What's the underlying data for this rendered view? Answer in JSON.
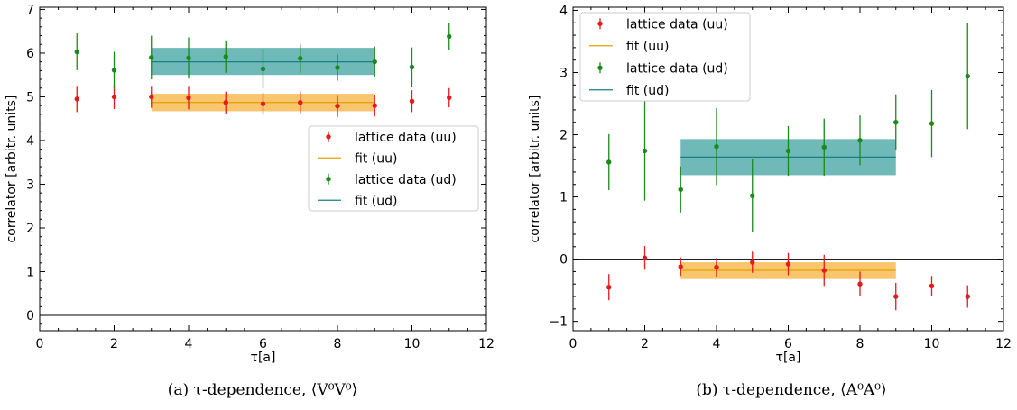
{
  "chart_data": [
    {
      "type": "scatter",
      "caption": "(a) τ-dependence, ⟨V⁰V⁰⟩",
      "xlabel": "τ[a]",
      "ylabel": "correlator [arbitr. units]",
      "xlim": [
        0,
        12
      ],
      "ylim": [
        -0.35,
        7.05
      ],
      "xticks": [
        0,
        2,
        4,
        6,
        8,
        10,
        12
      ],
      "yticks": [
        0,
        1,
        2,
        3,
        4,
        5,
        6,
        7
      ],
      "hline": 0,
      "legend_position": "center-right",
      "series": [
        {
          "name": "lattice data (uu)",
          "kind": "errorbar",
          "color": "#e41a1c",
          "x": [
            1,
            2,
            3,
            4,
            5,
            6,
            7,
            8,
            9,
            10,
            11
          ],
          "y": [
            4.95,
            5.0,
            5.0,
            4.98,
            4.87,
            4.84,
            4.87,
            4.79,
            4.8,
            4.9,
            4.98
          ],
          "err": [
            0.3,
            0.28,
            0.25,
            0.27,
            0.25,
            0.25,
            0.25,
            0.25,
            0.25,
            0.25,
            0.22
          ]
        },
        {
          "name": "fit (uu)",
          "kind": "fit",
          "color": "#e69f00",
          "band_color": "#f9c66e",
          "x_range": [
            3,
            9
          ],
          "value": 4.87,
          "band": [
            4.67,
            5.07
          ]
        },
        {
          "name": "lattice data (ud)",
          "kind": "errorbar",
          "color": "#1a8a1a",
          "x": [
            1,
            2,
            3,
            4,
            5,
            6,
            7,
            8,
            9,
            10,
            11
          ],
          "y": [
            6.03,
            5.61,
            5.9,
            5.89,
            5.92,
            5.64,
            5.88,
            5.67,
            5.8,
            5.68,
            6.38
          ],
          "err": [
            0.42,
            0.42,
            0.5,
            0.47,
            0.37,
            0.45,
            0.33,
            0.3,
            0.35,
            0.45,
            0.3
          ]
        },
        {
          "name": "fit (ud)",
          "kind": "fit",
          "color": "#1a7f7f",
          "band_color": "#6fb9b9",
          "x_range": [
            3,
            9
          ],
          "value": 5.8,
          "band": [
            5.5,
            6.12
          ]
        }
      ]
    },
    {
      "type": "scatter",
      "caption": "(b) τ-dependence, ⟨A⁰A⁰⟩",
      "xlabel": "τ[a]",
      "ylabel": "correlator [arbitr. units]",
      "xlim": [
        0,
        12
      ],
      "ylim": [
        -1.15,
        4.05
      ],
      "xticks": [
        0,
        2,
        4,
        6,
        8,
        10,
        12
      ],
      "yticks": [
        -1,
        0,
        1,
        2,
        3,
        4
      ],
      "hline": 0,
      "legend_position": "top-left",
      "series": [
        {
          "name": "lattice data (uu)",
          "kind": "errorbar",
          "color": "#e41a1c",
          "x": [
            1,
            2,
            3,
            4,
            5,
            6,
            7,
            8,
            9,
            10,
            11
          ],
          "y": [
            -0.45,
            0.02,
            -0.12,
            -0.13,
            -0.05,
            -0.08,
            -0.18,
            -0.4,
            -0.6,
            -0.43,
            -0.6
          ],
          "err": [
            0.21,
            0.19,
            0.15,
            0.15,
            0.17,
            0.18,
            0.25,
            0.2,
            0.22,
            0.16,
            0.18
          ]
        },
        {
          "name": "fit (uu)",
          "kind": "fit",
          "color": "#e69f00",
          "band_color": "#f9c66e",
          "x_range": [
            3,
            9
          ],
          "value": -0.18,
          "band": [
            -0.32,
            -0.05
          ]
        },
        {
          "name": "lattice data (ud)",
          "kind": "errorbar",
          "color": "#1a8a1a",
          "x": [
            1,
            2,
            3,
            4,
            5,
            6,
            7,
            8,
            9,
            10,
            11
          ],
          "y": [
            1.56,
            1.74,
            1.12,
            1.81,
            1.02,
            1.74,
            1.8,
            1.91,
            2.2,
            2.18,
            2.94
          ],
          "err": [
            0.45,
            0.8,
            0.37,
            0.62,
            0.59,
            0.4,
            0.46,
            0.4,
            0.45,
            0.54,
            0.85
          ]
        },
        {
          "name": "fit (ud)",
          "kind": "fit",
          "color": "#1a7f7f",
          "band_color": "#6fb9b9",
          "x_range": [
            3,
            9
          ],
          "value": 1.64,
          "band": [
            1.35,
            1.93
          ]
        }
      ]
    }
  ]
}
